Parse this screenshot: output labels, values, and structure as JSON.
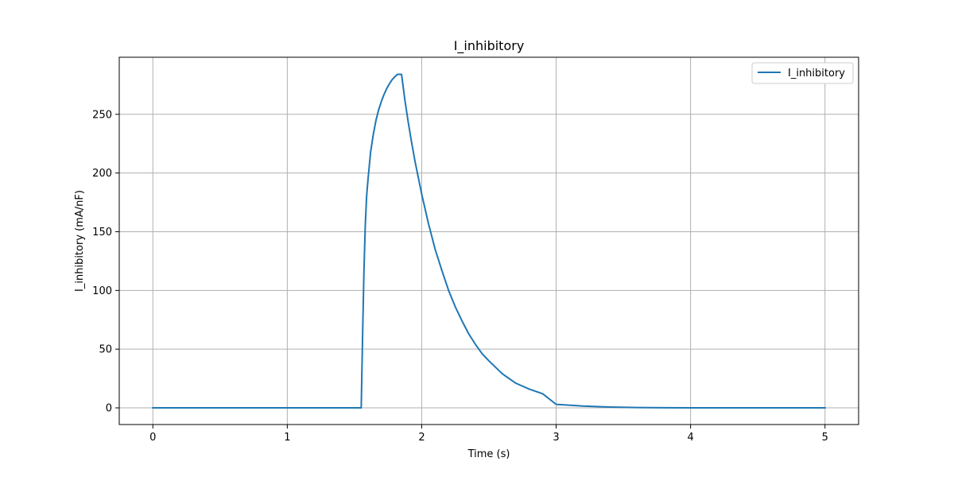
{
  "chart_data": {
    "type": "line",
    "title": "I_inhibitory",
    "xlabel": "Time (s)",
    "ylabel": "I_inhibitory (mA/nF)",
    "xlim": [
      -0.25,
      5.25
    ],
    "ylim": [
      -14.2,
      298.6
    ],
    "x_ticks": [
      0,
      1,
      2,
      3,
      4,
      5
    ],
    "y_ticks": [
      0,
      50,
      100,
      150,
      200,
      250
    ],
    "grid": true,
    "legend_position": "top-right",
    "series": [
      {
        "name": "I_inhibitory",
        "color": "#1f77b4",
        "x": [
          0.0,
          0.5,
          1.0,
          1.55,
          1.55,
          1.56,
          1.57,
          1.58,
          1.59,
          1.6,
          1.62,
          1.64,
          1.66,
          1.68,
          1.7,
          1.72,
          1.74,
          1.76,
          1.78,
          1.8,
          1.82,
          1.85,
          1.875,
          1.9,
          1.925,
          1.95,
          2.0,
          2.05,
          2.1,
          2.15,
          2.2,
          2.25,
          2.3,
          2.35,
          2.4,
          2.45,
          2.5,
          2.6,
          2.7,
          2.8,
          2.9,
          3.0,
          3.2,
          3.4,
          3.6,
          3.8,
          4.0,
          4.5,
          5.0
        ],
        "y": [
          0,
          0,
          0,
          0,
          0,
          60,
          115,
          155,
          180,
          194,
          218,
          233,
          245,
          254,
          261,
          267,
          272,
          276,
          279.5,
          282,
          284,
          284,
          262,
          243,
          226,
          210,
          182,
          157,
          135,
          117,
          100,
          86,
          74,
          63,
          54,
          46,
          40,
          29,
          21,
          16,
          12,
          3,
          1.5,
          0.7,
          0.3,
          0.1,
          0,
          0,
          0
        ]
      }
    ]
  }
}
